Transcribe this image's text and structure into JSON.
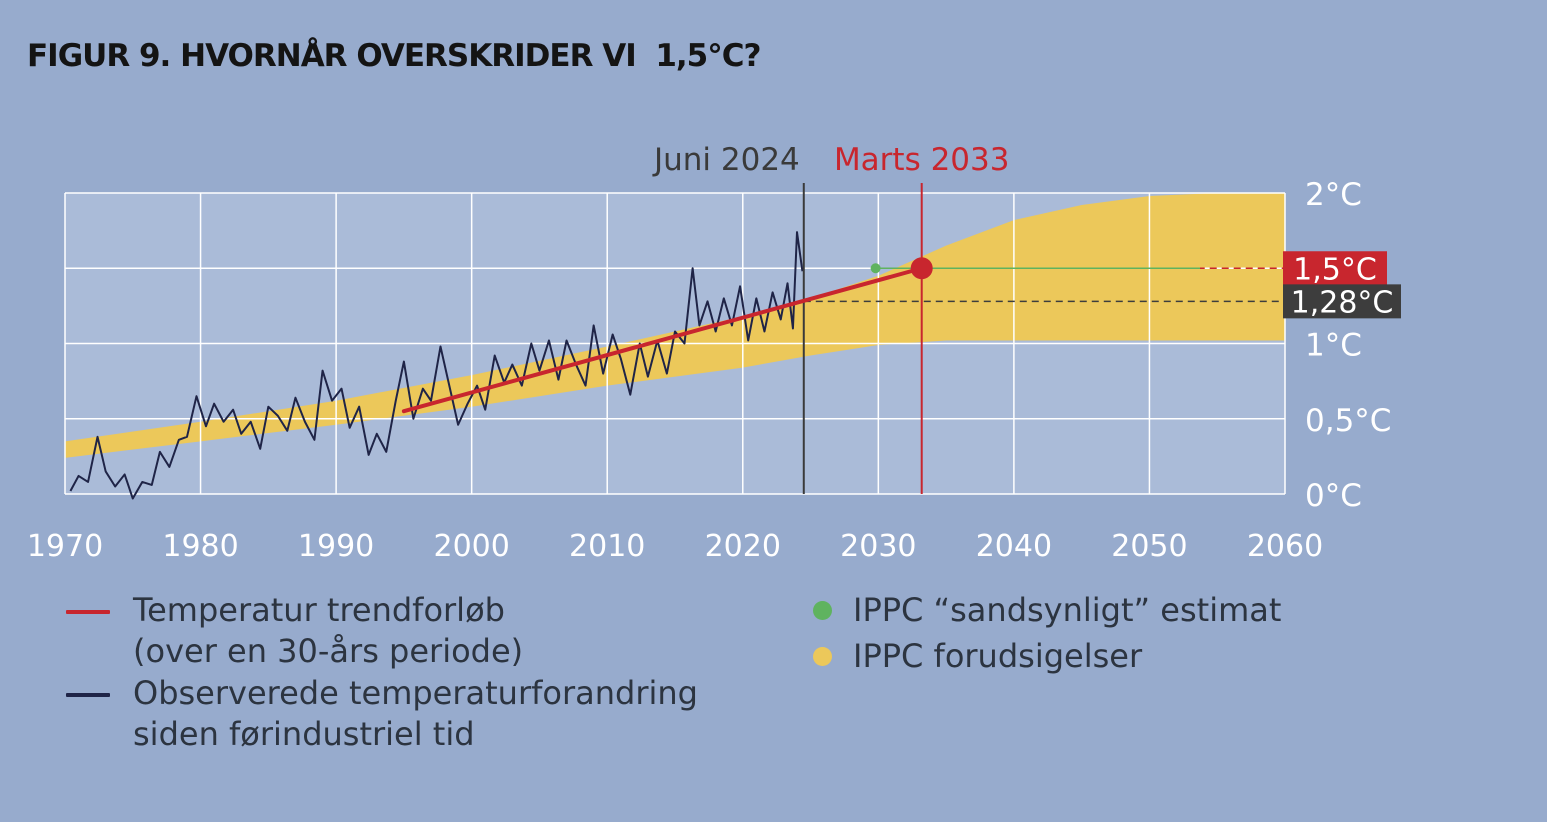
{
  "title": "FIGUR 9. HVORNÅR OVERSKRIDER VI  1,5°C?",
  "chart_data": {
    "type": "line",
    "xlim": [
      1970,
      2060
    ],
    "ylim": [
      0,
      2
    ],
    "x_ticks": [
      "1970",
      "1980",
      "1990",
      "2000",
      "2010",
      "2020",
      "2030",
      "2040",
      "2050",
      "2060"
    ],
    "y_ticks": [
      {
        "value": 0,
        "label": "0°C"
      },
      {
        "value": 0.5,
        "label": "0,5°C"
      },
      {
        "value": 1,
        "label": "1°C"
      },
      {
        "value": 2,
        "label": "2°C"
      }
    ],
    "grid": true,
    "vlines": [
      {
        "x": 2024.5,
        "label": "Juni 2024",
        "color": "#3a3a3a"
      },
      {
        "x": 2033.2,
        "label": "Marts 2033",
        "color": "#c8262e"
      }
    ],
    "hlines": [
      {
        "y": 1.5,
        "label": "1,5°C",
        "color": "#c8262e"
      },
      {
        "y": 1.28,
        "label": "1,28°C",
        "color": "#3d3d3d"
      }
    ],
    "ippc_band": {
      "x": [
        1970,
        1980,
        1990,
        2000,
        2010,
        2020,
        2025,
        2030,
        2035,
        2040,
        2045,
        2050,
        2055,
        2060
      ],
      "lower": [
        0.24,
        0.35,
        0.46,
        0.58,
        0.72,
        0.84,
        0.92,
        0.99,
        1.02,
        1.02,
        1.02,
        1.02,
        1.02,
        1.02
      ],
      "upper": [
        0.35,
        0.48,
        0.62,
        0.79,
        0.98,
        1.18,
        1.3,
        1.45,
        1.65,
        1.82,
        1.92,
        1.98,
        2.0,
        2.0
      ],
      "color": "#ecc85a"
    },
    "series": [
      {
        "name": "Observerede temperaturforandring siden førindustriel tid",
        "color": "#1f2447",
        "x": [
          1970.4,
          1971,
          1971.7,
          1972.4,
          1973,
          1973.7,
          1974.4,
          1975,
          1975.7,
          1976.4,
          1977,
          1977.7,
          1978.4,
          1979,
          1979.7,
          1980.4,
          1981,
          1981.7,
          1982.4,
          1983,
          1983.7,
          1984.4,
          1985,
          1985.7,
          1986.4,
          1987,
          1987.7,
          1988.4,
          1989,
          1989.7,
          1990.4,
          1991,
          1991.7,
          1992.4,
          1993,
          1993.7,
          1994.4,
          1995,
          1995.7,
          1996.4,
          1997,
          1997.7,
          1998.4,
          1999,
          1999.7,
          2000.4,
          2001,
          2001.7,
          2002.4,
          2003,
          2003.7,
          2004.4,
          2005,
          2005.7,
          2006.4,
          2007,
          2007.7,
          2008.4,
          2009,
          2009.7,
          2010.4,
          2011,
          2011.7,
          2012.4,
          2013,
          2013.7,
          2014.4,
          2015,
          2015.7,
          2016.3,
          2016.8,
          2017.4,
          2018,
          2018.6,
          2019.2,
          2019.8,
          2020.4,
          2021,
          2021.6,
          2022.2,
          2022.8,
          2023.3,
          2023.7,
          2024,
          2024.4
        ],
        "y": [
          0.02,
          0.12,
          0.08,
          0.38,
          0.15,
          0.05,
          0.13,
          -0.03,
          0.08,
          0.06,
          0.28,
          0.18,
          0.36,
          0.38,
          0.65,
          0.45,
          0.6,
          0.48,
          0.56,
          0.4,
          0.48,
          0.3,
          0.58,
          0.52,
          0.42,
          0.64,
          0.48,
          0.36,
          0.82,
          0.62,
          0.7,
          0.44,
          0.58,
          0.26,
          0.4,
          0.28,
          0.62,
          0.88,
          0.5,
          0.7,
          0.62,
          0.98,
          0.7,
          0.46,
          0.6,
          0.72,
          0.56,
          0.92,
          0.74,
          0.86,
          0.72,
          1.0,
          0.82,
          1.02,
          0.76,
          1.02,
          0.86,
          0.72,
          1.12,
          0.8,
          1.06,
          0.9,
          0.66,
          1.0,
          0.78,
          1.02,
          0.8,
          1.08,
          1.0,
          1.5,
          1.12,
          1.28,
          1.08,
          1.3,
          1.12,
          1.38,
          1.02,
          1.3,
          1.08,
          1.34,
          1.16,
          1.4,
          1.1,
          1.74,
          1.48
        ]
      },
      {
        "name": "Temperatur trendforløb (over en 30-års periode)",
        "color": "#c8262e",
        "x": [
          1995,
          2033.2
        ],
        "y": [
          0.55,
          1.5
        ]
      }
    ],
    "estimate_point": {
      "name": "IPPC “sandsynligt” estimat",
      "x": 2029.8,
      "y": 1.5,
      "color": "#5fb35f"
    },
    "crossing_point": {
      "x": 2033.2,
      "y": 1.5,
      "color": "#c8262e"
    }
  },
  "legend": [
    {
      "id": "trend",
      "lines": [
        "Temperatur trendforløb",
        "(over en 30-års periode)"
      ],
      "color": "#c8262e",
      "kind": "line"
    },
    {
      "id": "observed",
      "lines": [
        "Observerede temperaturforandring",
        "siden førindustriel tid"
      ],
      "color": "#1f2447",
      "kind": "line"
    },
    {
      "id": "estimate",
      "lines": [
        "IPPC “sandsynligt” estimat"
      ],
      "color": "#5fb35f",
      "kind": "dot"
    },
    {
      "id": "band",
      "lines": [
        "IPPC forudsigelser"
      ],
      "color": "#ecc85a",
      "kind": "dot"
    }
  ]
}
